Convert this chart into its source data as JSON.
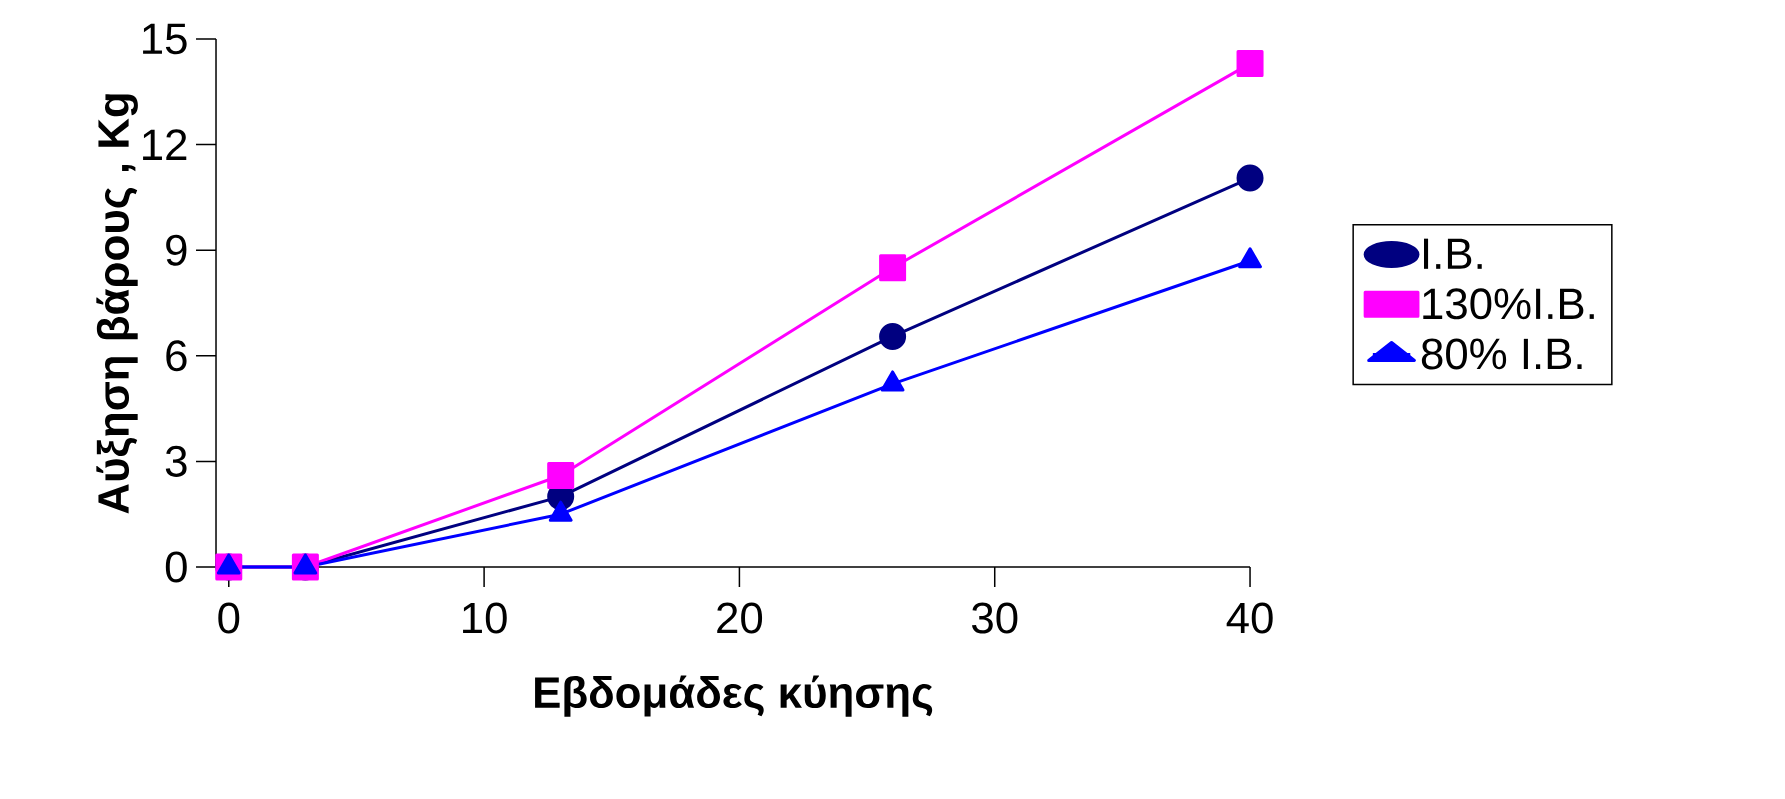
{
  "chart_data": {
    "type": "line",
    "xlabel": "Εβδομάδες κύησης",
    "ylabel": "Αύξηση βάρους , Kg",
    "x": [
      0,
      3,
      13,
      26,
      40
    ],
    "series": [
      {
        "name": "I.B.",
        "color": "#000080",
        "marker": "circle",
        "values": [
          0,
          0,
          2.0,
          6.55,
          11.05
        ]
      },
      {
        "name": "130%I.B.",
        "color": "#ff00ff",
        "marker": "square",
        "values": [
          0,
          0,
          2.6,
          8.5,
          14.3
        ]
      },
      {
        "name": "80%  I.B.",
        "color": "#0000ff",
        "marker": "triangle",
        "values": [
          0,
          0,
          1.5,
          5.2,
          8.7
        ]
      }
    ],
    "xlim": [
      -0.5,
      40
    ],
    "xticks": [
      0,
      10,
      20,
      30,
      40
    ],
    "ylim": [
      0,
      15
    ],
    "yticks": [
      0,
      3,
      6,
      9,
      12,
      15
    ],
    "grid": false,
    "legend": "right",
    "line_style": "solid"
  }
}
